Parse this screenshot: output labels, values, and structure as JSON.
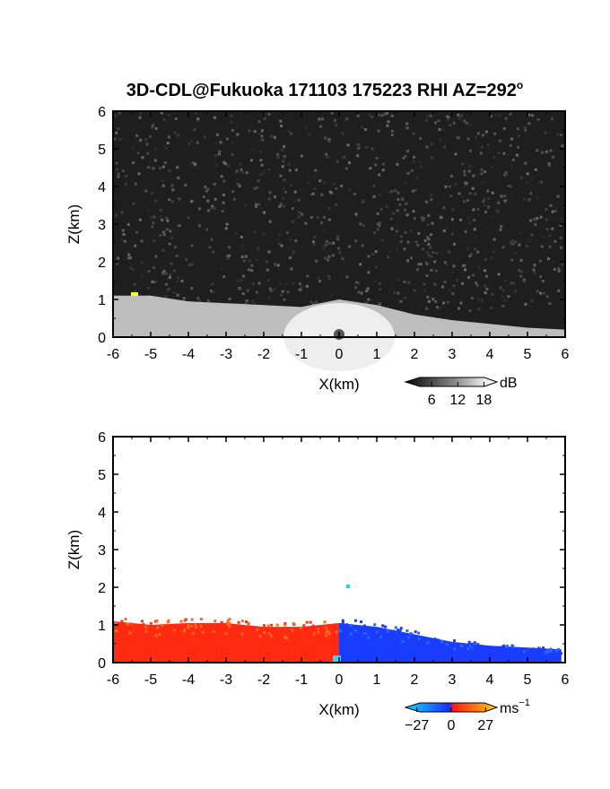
{
  "figure": {
    "title_text": "3D-CDL@Fukuoka 171103 175223 RHI AZ=292",
    "title_degree": "o"
  },
  "chart_data": [
    {
      "type": "heatmap",
      "name": "reflectivity-panel",
      "xlabel": "X(km)",
      "ylabel": "Z(km)",
      "xlim": [
        -6,
        6
      ],
      "ylim": [
        0,
        6
      ],
      "xticks": [
        "-6",
        "-5",
        "-4",
        "-3",
        "-2",
        "-1",
        "0",
        "1",
        "2",
        "3",
        "4",
        "5",
        "6"
      ],
      "yticks": [
        "0",
        "1",
        "2",
        "3",
        "4",
        "5",
        "6"
      ],
      "colorbar": {
        "label": "dB",
        "ticks": [
          "6",
          "12",
          "18"
        ],
        "tick_values": [
          6,
          12,
          18
        ],
        "range": [
          0,
          21
        ],
        "colormap": "grayscale"
      },
      "layer_top_km": [
        [
          -6,
          1.1
        ],
        [
          -5,
          1.1
        ],
        [
          -4,
          0.95
        ],
        [
          -3,
          0.9
        ],
        [
          -2,
          0.85
        ],
        [
          -1,
          0.8
        ],
        [
          0,
          1.0
        ],
        [
          1,
          0.85
        ],
        [
          2,
          0.6
        ],
        [
          3,
          0.45
        ],
        [
          4,
          0.35
        ],
        [
          5,
          0.25
        ],
        [
          6,
          0.2
        ]
      ],
      "grid": false
    },
    {
      "type": "heatmap",
      "name": "doppler-velocity-panel",
      "xlabel": "X(km)",
      "ylabel": "Z(km)",
      "xlim": [
        -6,
        6
      ],
      "ylim": [
        0,
        6
      ],
      "xticks": [
        "-6",
        "-5",
        "-4",
        "-3",
        "-2",
        "-1",
        "0",
        "1",
        "2",
        "3",
        "4",
        "5",
        "6"
      ],
      "yticks": [
        "0",
        "1",
        "2",
        "3",
        "4",
        "5",
        "6"
      ],
      "colorbar": {
        "label": "ms",
        "label_exponent": "−1",
        "ticks": [
          "−27",
          "0",
          "27"
        ],
        "tick_values": [
          -27,
          0,
          27
        ],
        "range": [
          -36,
          36
        ],
        "colormap": "cyan-blue-red-yellow"
      },
      "regions": [
        {
          "sign": "positive",
          "x_range": [
            -6,
            0
          ],
          "color": "#ff2a10"
        },
        {
          "sign": "negative",
          "x_range": [
            0,
            5.9
          ],
          "color": "#1a3cff"
        }
      ],
      "layer_top_km": [
        [
          -6,
          1.1
        ],
        [
          -5,
          1.0
        ],
        [
          -4,
          1.05
        ],
        [
          -3,
          1.05
        ],
        [
          -2,
          0.95
        ],
        [
          -1,
          0.95
        ],
        [
          0,
          1.05
        ],
        [
          1,
          0.95
        ],
        [
          2,
          0.75
        ],
        [
          3,
          0.55
        ],
        [
          4,
          0.45
        ],
        [
          5,
          0.4
        ],
        [
          5.9,
          0.35
        ]
      ],
      "grid": false
    }
  ]
}
